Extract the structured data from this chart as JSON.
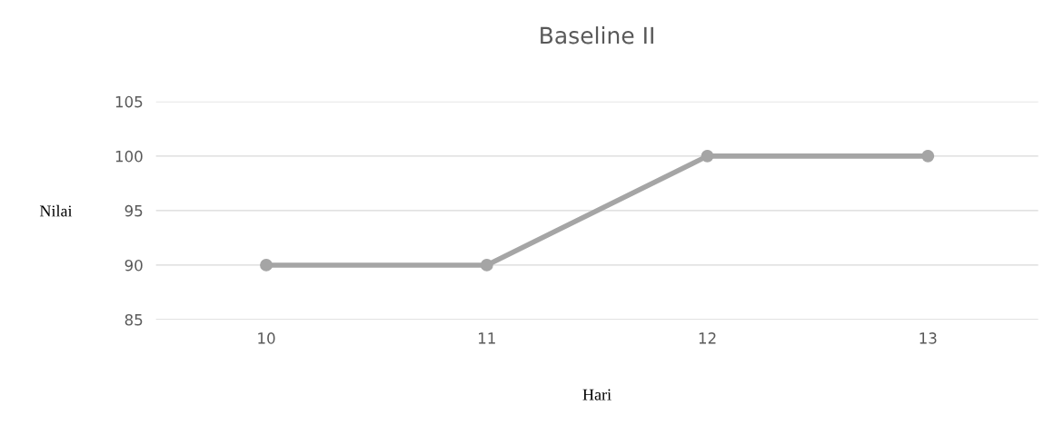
{
  "chart_data": {
    "type": "line",
    "title": "Baseline II",
    "xlabel": "Hari",
    "ylabel": "Nilai",
    "categories": [
      "10",
      "11",
      "12",
      "13"
    ],
    "series": [
      {
        "color": "#a5a5a5",
        "values": [
          90,
          90,
          100,
          100
        ]
      }
    ],
    "ylim": [
      85,
      105
    ],
    "yticks": [
      85,
      90,
      95,
      100,
      105
    ],
    "grid": "y",
    "marker": "circle",
    "line_style": "solid"
  }
}
